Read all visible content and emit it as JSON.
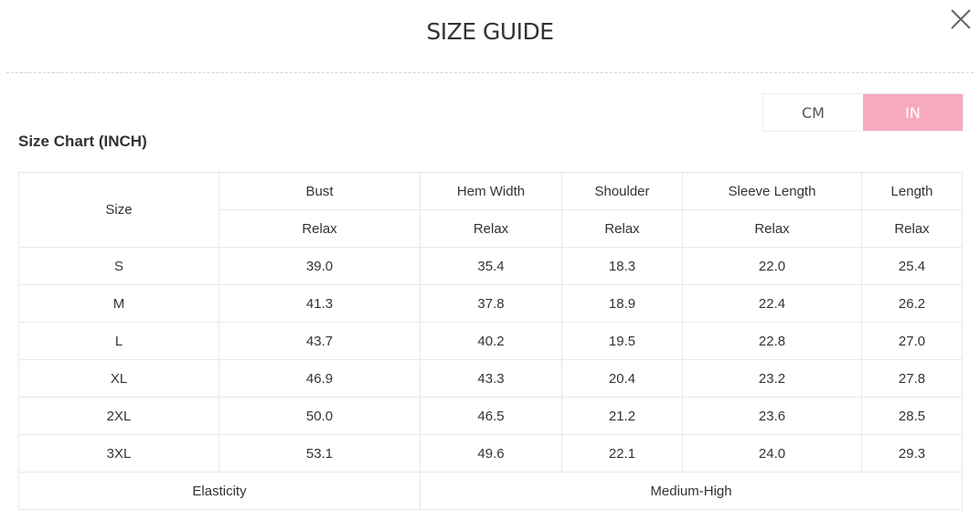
{
  "title": "SIZE GUIDE",
  "units": {
    "cm": "CM",
    "in": "IN",
    "active": "IN",
    "active_color": "#f7aabf"
  },
  "subtitle": "Size Chart (INCH)",
  "table": {
    "size_header": "Size",
    "columns": [
      "Bust",
      "Hem Width",
      "Shoulder",
      "Sleeve Length",
      "Length"
    ],
    "fit": [
      "Relax",
      "Relax",
      "Relax",
      "Relax",
      "Relax"
    ],
    "rows": [
      {
        "size": "S",
        "values": [
          "39.0",
          "35.4",
          "18.3",
          "22.0",
          "25.4"
        ]
      },
      {
        "size": "M",
        "values": [
          "41.3",
          "37.8",
          "18.9",
          "22.4",
          "26.2"
        ]
      },
      {
        "size": "L",
        "values": [
          "43.7",
          "40.2",
          "19.5",
          "22.8",
          "27.0"
        ]
      },
      {
        "size": "XL",
        "values": [
          "46.9",
          "43.3",
          "20.4",
          "23.2",
          "27.8"
        ]
      },
      {
        "size": "2XL",
        "values": [
          "50.0",
          "46.5",
          "21.2",
          "23.6",
          "28.5"
        ]
      },
      {
        "size": "3XL",
        "values": [
          "53.1",
          "49.6",
          "22.1",
          "24.0",
          "29.3"
        ]
      }
    ],
    "elasticity_label": "Elasticity",
    "elasticity_value": "Medium-High"
  }
}
